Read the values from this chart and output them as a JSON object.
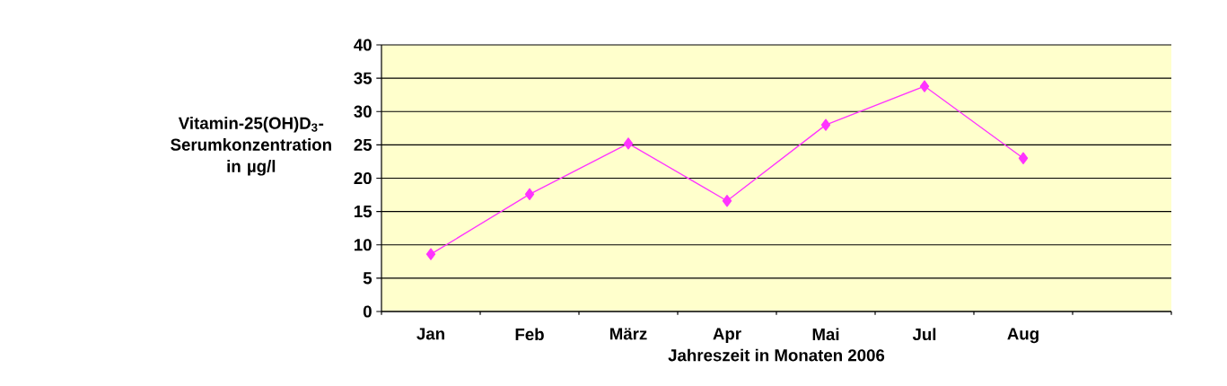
{
  "chart_data": {
    "type": "line",
    "xlabel": "Jahreszeit in Monaten 2006",
    "ylabel": "Vitamin-25(OH)D$_{3}$- Serumkonzentration in µg/l",
    "categories": [
      "Jan",
      "Feb",
      "März",
      "Apr",
      "Mai",
      "Jul",
      "Aug",
      null
    ],
    "series": [
      {
        "color": "#ff33ff",
        "values": [
          8.6,
          17.6,
          25.2,
          16.6,
          28.0,
          33.8,
          23.0,
          null
        ]
      }
    ],
    "ylim": [
      0,
      40
    ],
    "yticks": [
      0,
      5,
      10,
      15,
      20,
      25,
      30,
      35,
      40
    ],
    "grid": "y",
    "marker": "diamond",
    "line_style": "solid"
  }
}
